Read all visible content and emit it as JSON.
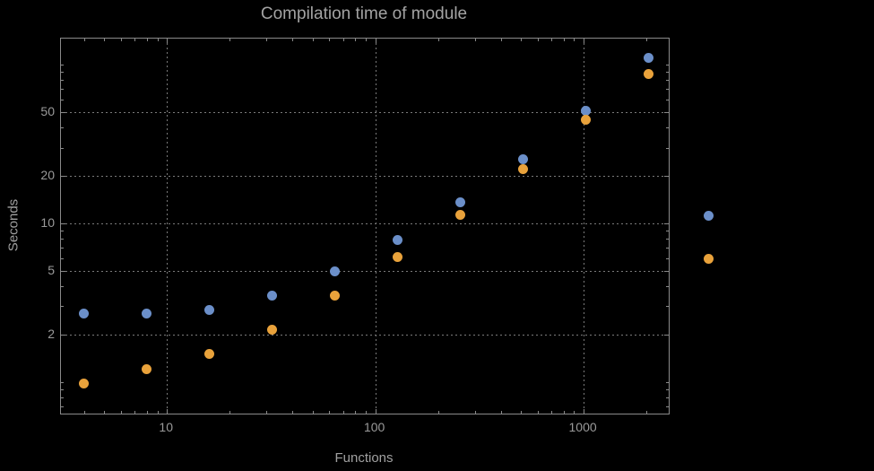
{
  "chart_data": {
    "type": "scatter",
    "title": "Compilation time of module",
    "xlabel": "Functions",
    "ylabel": "Seconds",
    "x_scale": "log",
    "y_scale": "log",
    "x_range": [
      3.1,
      2560
    ],
    "y_range": [
      0.633,
      146
    ],
    "x_ticks": [
      10,
      100,
      1000
    ],
    "y_ticks": [
      2,
      5,
      10,
      20,
      50
    ],
    "grid": true,
    "grid_style": "dotted",
    "legend_position": "right-outside",
    "x": [
      4,
      8,
      16,
      32,
      64,
      128,
      256,
      512,
      1024,
      2048
    ],
    "series": [
      {
        "name": "series-1-blue",
        "color": "#6b8fc9",
        "values": [
          2.7,
          2.7,
          2.85,
          3.5,
          5.0,
          7.9,
          13.5,
          25.5,
          51.5,
          110
        ]
      },
      {
        "name": "series-2-orange",
        "color": "#e9a23b",
        "values": [
          0.98,
          1.2,
          1.5,
          2.15,
          3.5,
          6.1,
          11.3,
          22,
          45,
          87
        ]
      }
    ],
    "legend": {
      "markers": [
        {
          "color": "#6b8fc9",
          "label": ""
        },
        {
          "color": "#e9a23b",
          "label": ""
        }
      ]
    },
    "colors": {
      "background": "#000000",
      "frame": "#8a8a8a",
      "grid": "#7a7a7a",
      "text": "#a0a0a0"
    }
  }
}
